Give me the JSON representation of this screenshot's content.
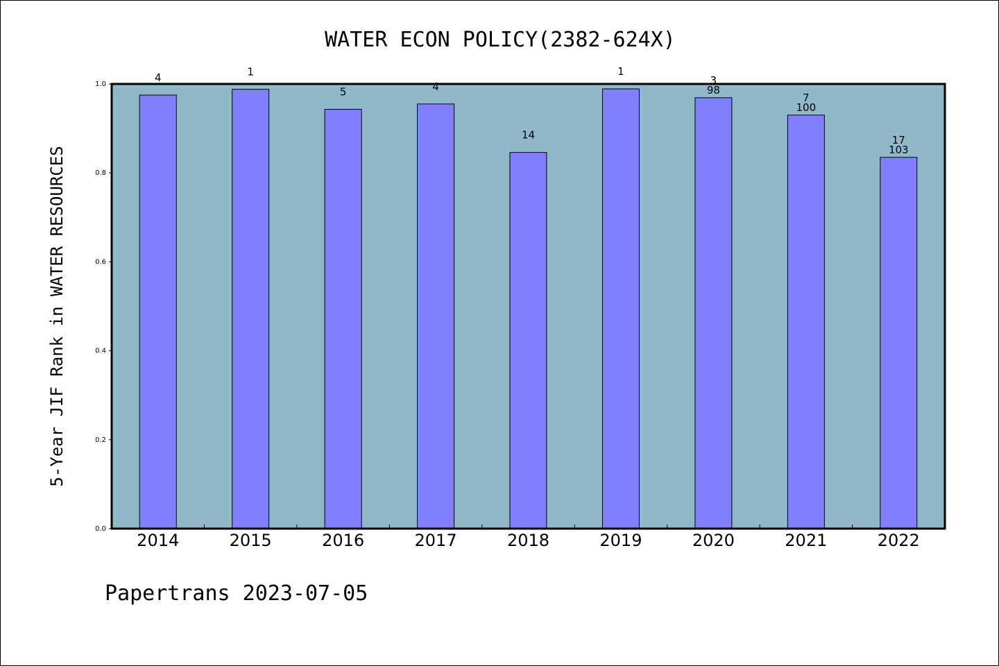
{
  "chart_data": {
    "type": "bar",
    "title": "WATER ECON POLICY(2382-624X)",
    "xlabel": "",
    "ylabel": "5-Year JIF Rank in WATER RESOURCES",
    "ylim": [
      0,
      1.0
    ],
    "yticks": [
      "0.0",
      "0.2",
      "0.4",
      "0.6",
      "0.8",
      "1.0"
    ],
    "categories": [
      "2014",
      "2015",
      "2016",
      "2017",
      "2018",
      "2019",
      "2020",
      "2021",
      "2022"
    ],
    "values": [
      0.975,
      0.988,
      0.943,
      0.955,
      0.846,
      0.989,
      0.969,
      0.93,
      0.835
    ],
    "rank_labels": [
      "4",
      "1",
      "5",
      "4",
      "14",
      "1",
      "3",
      "7",
      "17"
    ],
    "total_labels": [
      "",
      "",
      "",
      "",
      "",
      "",
      "98",
      "100",
      "103"
    ],
    "grid": false,
    "legend": "none",
    "colors": {
      "bar_fill": "#8080ff",
      "plot_background": "#90b8c8",
      "axis": "#000000"
    }
  },
  "footer": {
    "text": "Papertrans 2023-07-05"
  }
}
